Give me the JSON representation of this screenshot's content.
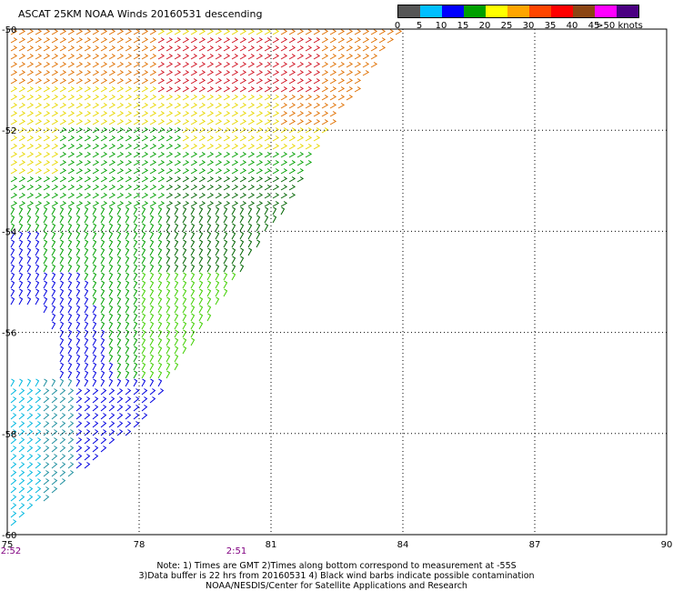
{
  "title": "ASCAT 25KM NOAA Winds 20160531 descending",
  "colorbar": {
    "unit_label": ">50 knots",
    "ticks": [
      "0",
      "5",
      "10",
      "15",
      "20",
      "25",
      "30",
      "35",
      "40",
      "45"
    ],
    "colors": [
      "#555555",
      "#00bfff",
      "#0000ff",
      "#00a000",
      "#ffff00",
      "#ffa500",
      "#ff4500",
      "#ff0000",
      "#8b4513",
      "#ff00ff",
      "#4b0082"
    ]
  },
  "map": {
    "lon_labels": [
      "75",
      "78",
      "81",
      "84",
      "87",
      "90"
    ],
    "lat_labels": [
      "-50",
      "-52",
      "-54",
      "-56",
      "-58",
      "-60"
    ],
    "time_labels": [
      "2:52",
      "2:51"
    ]
  },
  "notes": [
    "Note: 1) Times are GMT 2)Times along bottom correspond to measurement at -55S",
    "3)Data buffer is 22 hrs from 20160531 4) Black wind barbs indicate possible contamination",
    "NOAA/NESDIS/Center for Satellite Applications and Research"
  ]
}
